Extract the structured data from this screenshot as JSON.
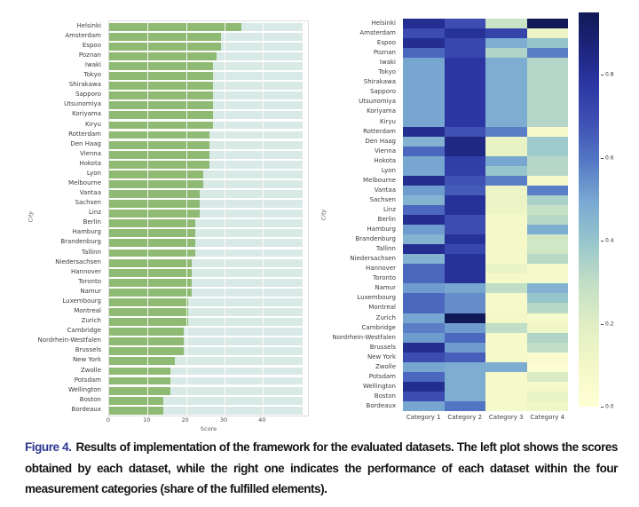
{
  "figure": {
    "caption": {
      "label": "Figure 4.",
      "label_color": "#2c3792",
      "text": "Results of implementation of the framework for the evaluated datasets. The left plot shows the scores obtained by each dataset, while the right one indicates the performance of each dataset within the four measurement categories (share of the fulfilled elements)."
    }
  },
  "chart_data": [
    {
      "type": "bar",
      "orientation": "horizontal",
      "title": "",
      "xlabel": "Score",
      "ylabel": "City",
      "x_ticks": [
        "0",
        "10",
        "20",
        "30",
        "40"
      ],
      "x_tick_values": [
        0,
        10,
        20,
        30,
        40
      ],
      "xlim": [
        0,
        52
      ],
      "track_length": 50.3,
      "bar_color": "#8fba73",
      "track_color": "#d9e9e6",
      "grid": true,
      "categories": [
        "Helsinki",
        "Amsterdam",
        "Espoo",
        "Poznan",
        "Iwaki",
        "Tokyo",
        "Shirakawa",
        "Sapporo",
        "Utsunomiya",
        "Koriyama",
        "Kiryu",
        "Rotterdam",
        "Den Haag",
        "Vienna",
        "Hokota",
        "Lyon",
        "Melbourne",
        "Vantaa",
        "Sachsen",
        "Linz",
        "Berlin",
        "Hamburg",
        "Brandenburg",
        "Tallinn",
        "Niedersachsen",
        "Hannover",
        "Toronto",
        "Namur",
        "Luxembourg",
        "Montreal",
        "Zurich",
        "Cambridge",
        "Nordrhein-Westfalen",
        "Brussels",
        "New York",
        "Zwolle",
        "Potsdam",
        "Wellington",
        "Boston",
        "Bordeaux"
      ],
      "values": [
        34.5,
        29,
        29,
        28,
        27,
        27,
        27,
        27,
        27,
        27,
        27,
        26,
        26,
        26,
        26,
        24.5,
        24.5,
        23.5,
        23.5,
        23.5,
        22.5,
        22.5,
        22.5,
        22.5,
        21.5,
        21.5,
        21.5,
        21.5,
        20.5,
        20.5,
        20.5,
        19.5,
        19.5,
        19.5,
        17,
        16,
        16,
        16,
        14,
        14
      ]
    },
    {
      "type": "heatmap",
      "title": "",
      "ylabel": "City",
      "columns": [
        "Category 1",
        "Category 2",
        "Category 3",
        "Category 4"
      ],
      "rows": [
        "Helsinki",
        "Amsterdam",
        "Espoo",
        "Poznan",
        "Iwaki",
        "Tokyo",
        "Shirakawa",
        "Sapporo",
        "Utsunomiya",
        "Koriyama",
        "Kiryu",
        "Rotterdam",
        "Den Haag",
        "Vienna",
        "Hokota",
        "Lyon",
        "Melbourne",
        "Vantaa",
        "Sachsen",
        "Linz",
        "Berlin",
        "Hamburg",
        "Brandenburg",
        "Tallinn",
        "Niedersachsen",
        "Hannover",
        "Toronto",
        "Namur",
        "Luxembourg",
        "Montreal",
        "Zurich",
        "Cambridge",
        "Nordrhein-Westfalen",
        "Brussels",
        "New York",
        "Zwolle",
        "Potsdam",
        "Wellington",
        "Boston",
        "Bordeaux"
      ],
      "values": [
        [
          0.82,
          0.7,
          0.27,
          0.95
        ],
        [
          0.7,
          0.8,
          0.73,
          0.13
        ],
        [
          0.82,
          0.72,
          0.48,
          0.4
        ],
        [
          0.63,
          0.72,
          0.34,
          0.58
        ],
        [
          0.5,
          0.78,
          0.48,
          0.33
        ],
        [
          0.5,
          0.78,
          0.48,
          0.33
        ],
        [
          0.5,
          0.78,
          0.48,
          0.33
        ],
        [
          0.5,
          0.78,
          0.48,
          0.33
        ],
        [
          0.5,
          0.78,
          0.48,
          0.33
        ],
        [
          0.5,
          0.78,
          0.48,
          0.33
        ],
        [
          0.5,
          0.78,
          0.48,
          0.33
        ],
        [
          0.82,
          0.68,
          0.58,
          0.07
        ],
        [
          0.46,
          0.85,
          0.16,
          0.38
        ],
        [
          0.63,
          0.85,
          0.16,
          0.38
        ],
        [
          0.5,
          0.75,
          0.5,
          0.33
        ],
        [
          0.5,
          0.75,
          0.4,
          0.33
        ],
        [
          0.82,
          0.68,
          0.58,
          0.07
        ],
        [
          0.52,
          0.66,
          0.13,
          0.58
        ],
        [
          0.46,
          0.8,
          0.14,
          0.35
        ],
        [
          0.63,
          0.8,
          0.13,
          0.28
        ],
        [
          0.82,
          0.7,
          0.09,
          0.32
        ],
        [
          0.52,
          0.7,
          0.09,
          0.48
        ],
        [
          0.46,
          0.8,
          0.09,
          0.25
        ],
        [
          0.82,
          0.72,
          0.09,
          0.25
        ],
        [
          0.46,
          0.8,
          0.09,
          0.32
        ],
        [
          0.63,
          0.8,
          0.14,
          0.08
        ],
        [
          0.63,
          0.8,
          0.09,
          0.08
        ],
        [
          0.52,
          0.5,
          0.3,
          0.46
        ],
        [
          0.63,
          0.55,
          0.08,
          0.4
        ],
        [
          0.63,
          0.55,
          0.08,
          0.32
        ],
        [
          0.5,
          0.95,
          0.1,
          0.08
        ],
        [
          0.58,
          0.52,
          0.3,
          0.12
        ],
        [
          0.52,
          0.63,
          0.08,
          0.34
        ],
        [
          0.82,
          0.52,
          0.08,
          0.3
        ],
        [
          0.7,
          0.65,
          0.08,
          0.05
        ],
        [
          0.5,
          0.48,
          0.48,
          0.03
        ],
        [
          0.63,
          0.48,
          0.08,
          0.22
        ],
        [
          0.82,
          0.48,
          0.08,
          0.08
        ],
        [
          0.7,
          0.48,
          0.08,
          0.15
        ],
        [
          0.5,
          0.6,
          0.08,
          0.12
        ]
      ],
      "colorbar": {
        "vmin": 0,
        "vmax": 0.95,
        "ticks": [
          "0.8",
          "0.6",
          "0.4",
          "0.2",
          "0.0"
        ],
        "tick_values": [
          0.8,
          0.6,
          0.4,
          0.2,
          0.0
        ],
        "position": "right"
      },
      "colormap": {
        "name": "YlGnBu",
        "stops": [
          [
            0.0,
            "#ffffd6"
          ],
          [
            0.1,
            "#f4f8c8"
          ],
          [
            0.2,
            "#e2efc4"
          ],
          [
            0.32,
            "#c0ddc6"
          ],
          [
            0.42,
            "#96c5cc"
          ],
          [
            0.52,
            "#79a9d2"
          ],
          [
            0.63,
            "#5275c4"
          ],
          [
            0.72,
            "#3f51b4"
          ],
          [
            0.82,
            "#2b36a2"
          ],
          [
            0.92,
            "#1b2378"
          ],
          [
            1.0,
            "#111a56"
          ]
        ]
      }
    }
  ]
}
